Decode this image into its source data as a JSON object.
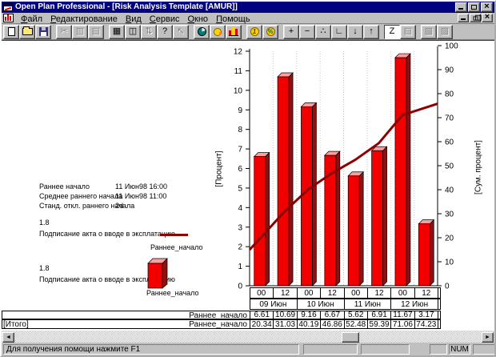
{
  "window": {
    "title": "Open Plan Professional - [Risk Analysis Template [AMUR]]",
    "controls": [
      "minimize",
      "restore",
      "close"
    ]
  },
  "menu": {
    "items": [
      "Файл",
      "Редактирование",
      "Вид",
      "Сервис",
      "Окно",
      "Помощь"
    ]
  },
  "toolbar": {
    "groups": [
      [
        {
          "id": "new-document"
        },
        {
          "id": "open"
        },
        {
          "id": "save"
        }
      ],
      [
        {
          "id": "cut",
          "glyph": "✂",
          "disabled": true
        },
        {
          "id": "copy",
          "glyph": "▥",
          "disabled": true
        },
        {
          "id": "paste",
          "glyph": "▤",
          "disabled": true
        }
      ],
      [
        {
          "id": "print",
          "glyph": "▦"
        },
        {
          "id": "print-preview",
          "glyph": "◫"
        },
        {
          "id": "transfer",
          "glyph": "⇅",
          "disabled": true
        },
        {
          "id": "help",
          "glyph": "?"
        },
        {
          "id": "context-help",
          "glyph": "↖",
          "disabled": true
        }
      ],
      [
        {
          "id": "time-analysis"
        },
        {
          "id": "resource-analysis"
        },
        {
          "id": "histogram"
        }
      ],
      [
        {
          "id": "cost"
        },
        {
          "id": "percent"
        }
      ],
      [
        {
          "id": "add",
          "glyph": "+"
        },
        {
          "id": "remove",
          "glyph": "−"
        },
        {
          "id": "link",
          "glyph": "∴"
        },
        {
          "id": "step",
          "glyph": "∟"
        },
        {
          "id": "move-down",
          "glyph": "↓"
        },
        {
          "id": "move-up",
          "glyph": "↑"
        }
      ],
      [
        {
          "id": "zigzag",
          "glyph": "Z",
          "pressed": true
        },
        {
          "id": "notes",
          "glyph": "▤",
          "disabled": true
        }
      ],
      [
        {
          "id": "window-tile",
          "glyph": "▧",
          "disabled": true
        },
        {
          "id": "window-cascade",
          "glyph": "▨",
          "disabled": true
        }
      ]
    ]
  },
  "info": {
    "rows": [
      {
        "label": "Раннее начало",
        "value": "11 Июн98 16:00"
      },
      {
        "label": "Среднее раннего начала",
        "value": "11 Июн98 11:00"
      },
      {
        "label": "Станд. откл.  раннего начала",
        "value": "2d"
      }
    ]
  },
  "legend": [
    {
      "value": "1.8",
      "desc": "Подписание акта о вводе в эксплатацию",
      "swatch": "line",
      "series": "Раннее_начало"
    },
    {
      "value": "1.8",
      "desc": "Подписание акта о вводе в эксплатацию",
      "swatch": "bar",
      "series": "Раннее_начало"
    }
  ],
  "chart_data": {
    "type": "bar+line combo",
    "categories": [
      "09 Июн 00",
      "09 Июн 12",
      "10 Июн 00",
      "10 Июн 12",
      "11 Июн 00",
      "11 Июн 12",
      "12 Июн 00",
      "12 Июн 12"
    ],
    "x_tick_labels": [
      "00",
      "12",
      "00",
      "12",
      "00",
      "12",
      "00",
      "12"
    ],
    "date_groups": [
      "09 Июн",
      "10 Июн",
      "11 Июн",
      "12 Июн"
    ],
    "series": [
      {
        "name": "Раннее_начало",
        "type": "bar",
        "axis": "left",
        "values": [
          6.61,
          10.69,
          9.16,
          6.67,
          5.62,
          6.91,
          11.67,
          3.17
        ]
      },
      {
        "name": "Раннее_начало [Итого]",
        "type": "line",
        "axis": "right",
        "values": [
          20.34,
          31.03,
          40.19,
          46.86,
          52.48,
          59.39,
          71.06,
          74.23
        ]
      }
    ],
    "left_axis": {
      "label": "[Процент]",
      "min": 0,
      "max": 12,
      "step": 1
    },
    "right_axis": {
      "label": "[Сум. процент]",
      "min": 0,
      "max": 100,
      "step": 10
    },
    "grid": "vertical dotted",
    "legend_position": "left",
    "colors": {
      "bar": "#f20000",
      "bar_top": "#ff9e9e",
      "bar_side": "#8f1010",
      "line": "#8b0000"
    }
  },
  "table": {
    "tick_row": [
      "00",
      "12",
      "00",
      "12",
      "00",
      "12",
      "00",
      "12"
    ],
    "date_row": [
      "09 Июн",
      "10 Июн",
      "11 Июн",
      "12 Июн"
    ],
    "rows": [
      {
        "head": "",
        "label": "Раннее_начало",
        "values": [
          "6.61",
          "10.69",
          "9.16",
          "6.67",
          "5.62",
          "6.91",
          "11.67",
          "3.17"
        ]
      },
      {
        "head": "[Итого]",
        "label": "Раннее_начало",
        "values": [
          "20.34",
          "31.03",
          "40.19",
          "46.86",
          "52.48",
          "59.39",
          "71.06",
          "74.23"
        ]
      }
    ]
  },
  "statusbar": {
    "message": "Для получения помощи нажмите F1",
    "num": "NUM"
  }
}
